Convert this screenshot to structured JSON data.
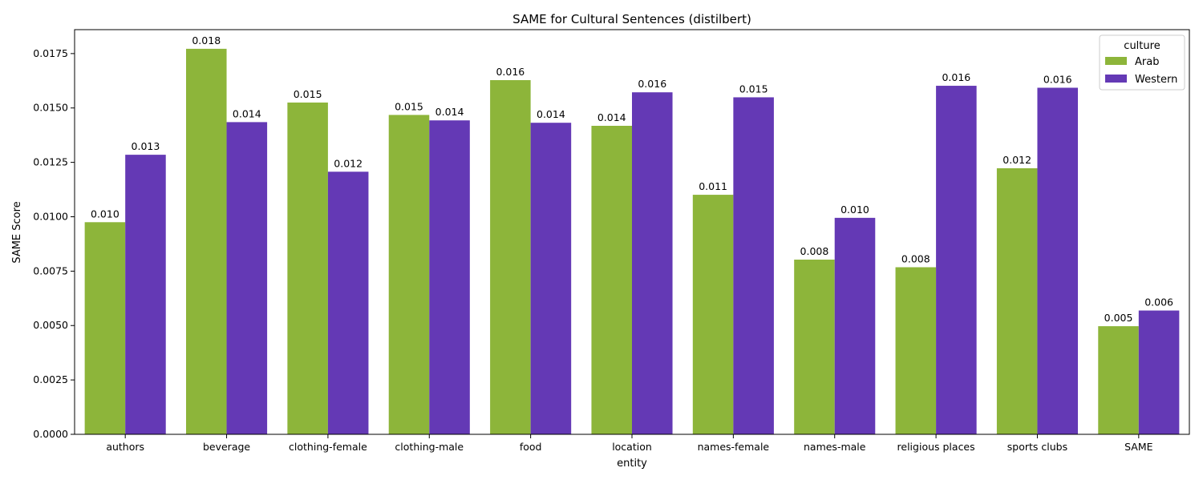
{
  "chart_data": {
    "type": "bar",
    "title": "SAME for Cultural Sentences (distilbert)",
    "xlabel": "entity",
    "ylabel": "SAME Score",
    "ylim": [
      0,
      0.0186
    ],
    "yticks": [
      "0.0000",
      "0.0025",
      "0.0050",
      "0.0075",
      "0.0100",
      "0.0125",
      "0.0150",
      "0.0175"
    ],
    "categories": [
      "authors",
      "beverage",
      "clothing-female",
      "clothing-male",
      "food",
      "location",
      "names-female",
      "names-male",
      "religious places",
      "sports clubs",
      "SAME"
    ],
    "series": [
      {
        "name": "Arab",
        "color": "#8db53a",
        "values": [
          0.00975,
          0.01772,
          0.01525,
          0.01468,
          0.01628,
          0.01418,
          0.01101,
          0.00803,
          0.00768,
          0.01223,
          0.00497
        ],
        "labels": [
          "0.010",
          "0.018",
          "0.015",
          "0.015",
          "0.016",
          "0.014",
          "0.011",
          "0.008",
          "0.008",
          "0.012",
          "0.005"
        ]
      },
      {
        "name": "Western",
        "color": "#6439b5",
        "values": [
          0.01285,
          0.01435,
          0.01207,
          0.01443,
          0.01432,
          0.01572,
          0.01549,
          0.00995,
          0.01602,
          0.01593,
          0.00569
        ],
        "labels": [
          "0.013",
          "0.014",
          "0.012",
          "0.014",
          "0.014",
          "0.016",
          "0.015",
          "0.010",
          "0.016",
          "0.016",
          "0.006"
        ]
      }
    ],
    "legend": {
      "title": "culture",
      "placement": "top-right"
    },
    "grid": false
  }
}
